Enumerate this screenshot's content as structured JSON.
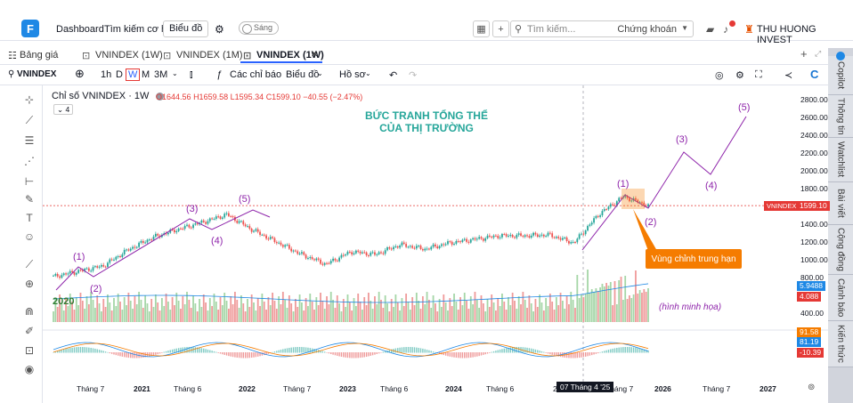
{
  "topbar": {
    "dashboard": "Dashboard",
    "search_opportunity": "Tìm kiếm cơ hội",
    "chart_button": "Biểu đồ",
    "theme_toggle": "Sáng",
    "search_placeholder": "Tìm kiếm...",
    "search_category": "Chứng khoán",
    "user_name": "THU HUONG INVEST"
  },
  "tabs": {
    "board": "Bảng giá",
    "items": [
      "VNINDEX (1W)",
      "VNINDEX (1M)",
      "VNINDEX (1W)"
    ],
    "close": "✕"
  },
  "toolbar": {
    "symbol": "VNINDEX",
    "tf_1h": "1h",
    "tf_d": "D",
    "tf_w": "W",
    "tf_m": "M",
    "tf_3m": "3M",
    "indicators": "Các chỉ báo",
    "chart": "Biểu đồ",
    "profile": "Hồ sơ"
  },
  "legend": {
    "title": "Chỉ số VNINDEX · 1W",
    "o": "O1644.56",
    "h": "H1659.58",
    "l": "L1595.34",
    "c": "C1599.10",
    "chg": "−40.55 (−2.47%)",
    "count": "4"
  },
  "right_sidebar": [
    "Copilot",
    "Thông tin",
    "Watchlist",
    "Bài viết",
    "Cộng đồng",
    "Cảnh báo",
    "Kiến thức"
  ],
  "annotations": {
    "headline_1": "BỨC TRANH TỔNG THỂ",
    "headline_2": "CỦA THỊ TRƯỜNG",
    "w1": "(1)",
    "w2": "(2)",
    "w3": "(3)",
    "w4": "(4)",
    "w5": "(5)",
    "n1": "(1)",
    "n2": "(2)",
    "n3": "(3)",
    "n4": "(4)",
    "n5": "(5)",
    "callout": "Vùng chỉnh trung hạn",
    "year": "2020",
    "illustration": "(hình minh họa)"
  },
  "price_axis": {
    "ticks": [
      "2800.00",
      "2600.00",
      "2400.00",
      "2200.00",
      "2000.00",
      "1800.00",
      "1400.00",
      "1200.00",
      "1000.00",
      "800.00",
      "400.00"
    ],
    "current_symbol": "VNINDEX",
    "current_price": "1599.10",
    "vol_1": "5.9488",
    "vol_2": "4.088",
    "macd_1": "91.58",
    "macd_2": "81.19",
    "macd_3": "-10.39"
  },
  "time_axis": {
    "ticks": [
      "Tháng 7",
      "2021",
      "Tháng 6",
      "2022",
      "Tháng 7",
      "2023",
      "Tháng 6",
      "2024",
      "Tháng 6",
      "2",
      "Tháng 7",
      "2026",
      "Tháng 7",
      "2027"
    ],
    "crosshair_date": "07 Tháng 4 '25"
  },
  "chart_data": {
    "type": "candlestick",
    "symbol": "VNINDEX",
    "interval": "1W",
    "close_series": [
      {
        "x": "2020-04",
        "y": 800
      },
      {
        "x": "2020-07",
        "y": 860
      },
      {
        "x": "2020-10",
        "y": 920
      },
      {
        "x": "2021-01",
        "y": 1100
      },
      {
        "x": "2021-04",
        "y": 1240
      },
      {
        "x": "2021-07",
        "y": 1330
      },
      {
        "x": "2021-10",
        "y": 1410
      },
      {
        "x": "2022-01",
        "y": 1500
      },
      {
        "x": "2022-04",
        "y": 1330
      },
      {
        "x": "2022-07",
        "y": 1190
      },
      {
        "x": "2022-10",
        "y": 1050
      },
      {
        "x": "2022-11",
        "y": 940
      },
      {
        "x": "2023-01",
        "y": 1080
      },
      {
        "x": "2023-04",
        "y": 1050
      },
      {
        "x": "2023-07",
        "y": 1160
      },
      {
        "x": "2023-10",
        "y": 1110
      },
      {
        "x": "2024-01",
        "y": 1180
      },
      {
        "x": "2024-04",
        "y": 1220
      },
      {
        "x": "2024-07",
        "y": 1260
      },
      {
        "x": "2024-10",
        "y": 1260
      },
      {
        "x": "2025-01",
        "y": 1270
      },
      {
        "x": "2025-04",
        "y": 1180
      },
      {
        "x": "2025-07",
        "y": 1500
      },
      {
        "x": "2025-08",
        "y": 1700
      },
      {
        "x": "2025-10",
        "y": 1599
      }
    ],
    "projection": [
      {
        "label": "(1)",
        "y": 1720
      },
      {
        "label": "(2)",
        "y": 1570
      },
      {
        "label": "(3)",
        "y": 2200
      },
      {
        "label": "(4)",
        "y": 1950
      },
      {
        "label": "(5)",
        "y": 2600
      }
    ],
    "ylim": [
      300,
      2900
    ]
  }
}
